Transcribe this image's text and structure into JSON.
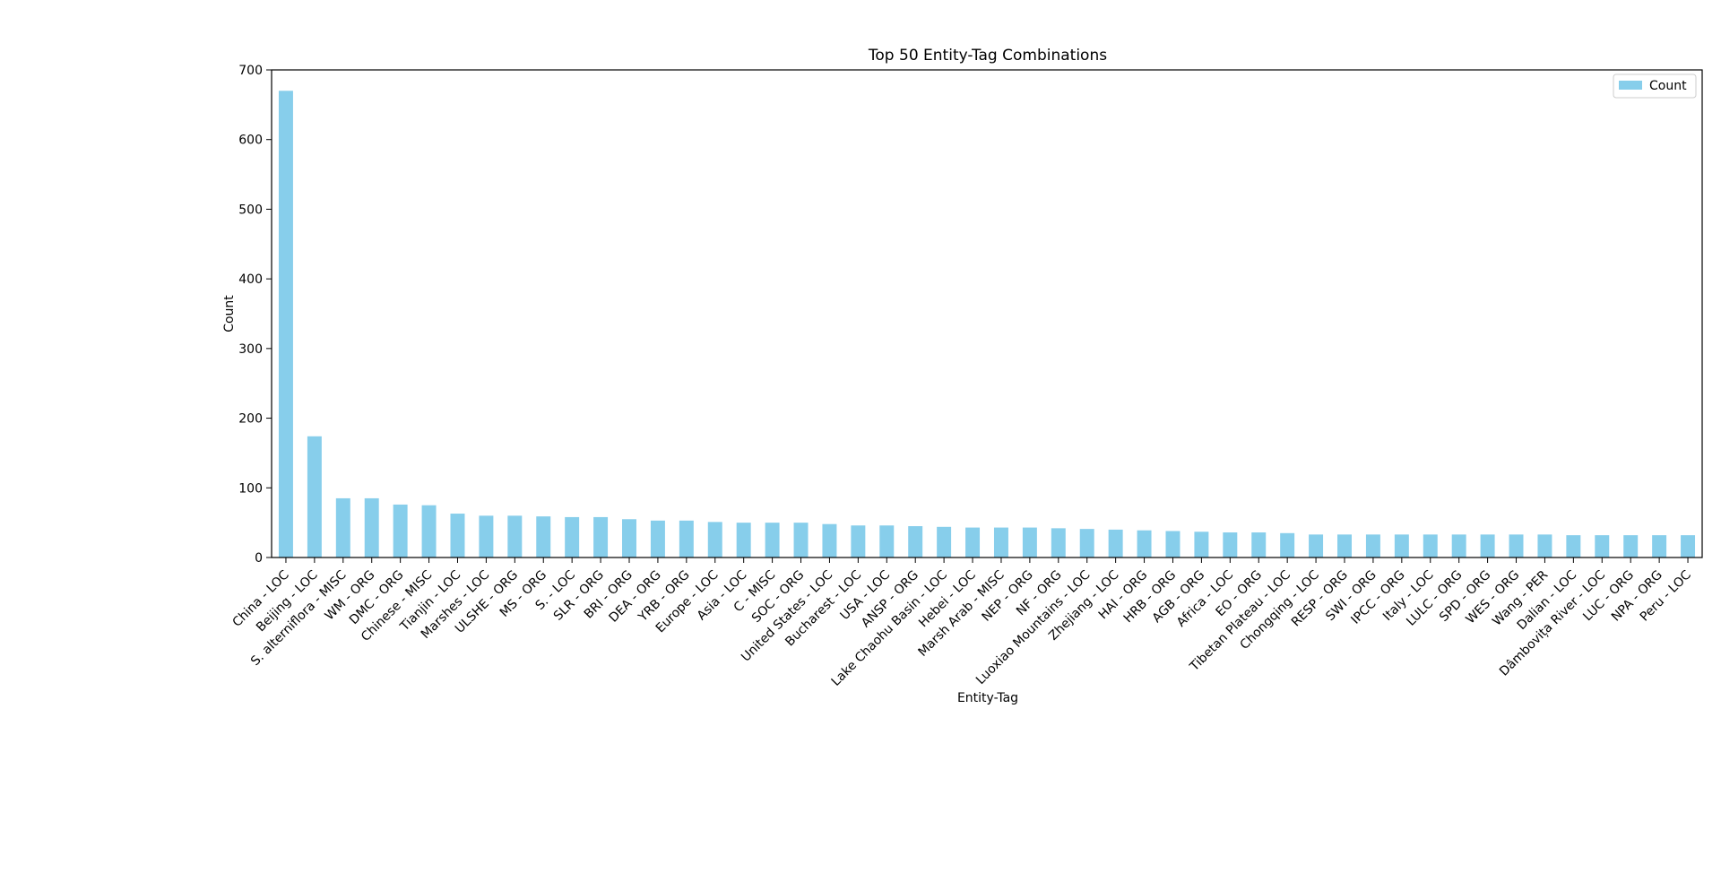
{
  "chart_data": {
    "type": "bar",
    "title": "Top 50 Entity-Tag Combinations",
    "xlabel": "Entity-Tag",
    "ylabel": "Count",
    "ylim": [
      0,
      700
    ],
    "yticks": [
      0,
      100,
      200,
      300,
      400,
      500,
      600,
      700
    ],
    "grid": false,
    "legend_position": "top-right",
    "bar_color": "#87ceeb",
    "categories": [
      "China - LOC",
      "Beijing - LOC",
      "S. alterniflora - MISC",
      "WM - ORG",
      "DMC - ORG",
      "Chinese - MISC",
      "Tianjin - LOC",
      "Marshes - LOC",
      "ULSHE - ORG",
      "MS - ORG",
      "S. - LOC",
      "SLR - ORG",
      "BRI - ORG",
      "DEA - ORG",
      "YRB - ORG",
      "Europe - LOC",
      "Asia - LOC",
      "C - MISC",
      "SOC - ORG",
      "United States - LOC",
      "Bucharest - LOC",
      "USA - LOC",
      "ANSP - ORG",
      "Lake Chaohu Basin - LOC",
      "Hebei - LOC",
      "Marsh Arab - MISC",
      "NEP - ORG",
      "NF - ORG",
      "Luoxiao Mountains - LOC",
      "Zhejiang - LOC",
      "HAI - ORG",
      "HRB - ORG",
      "AGB - ORG",
      "Africa - LOC",
      "EO - ORG",
      "Tibetan Plateau - LOC",
      "Chongqing - LOC",
      "RESP - ORG",
      "SWI - ORG",
      "IPCC - ORG",
      "Italy - LOC",
      "LULC - ORG",
      "SPD - ORG",
      "WES - ORG",
      "Wang - PER",
      "Dalian - LOC",
      "Dâmbovița River - LOC",
      "LUC - ORG",
      "NPA - ORG",
      "Peru - LOC"
    ],
    "series": [
      {
        "name": "Count",
        "values": [
          670,
          174,
          85,
          85,
          76,
          75,
          63,
          60,
          60,
          59,
          58,
          58,
          55,
          53,
          53,
          51,
          50,
          50,
          50,
          48,
          46,
          46,
          45,
          44,
          43,
          43,
          43,
          42,
          41,
          40,
          39,
          38,
          37,
          36,
          36,
          35,
          33,
          33,
          33,
          33,
          33,
          33,
          33,
          33,
          33,
          32,
          32,
          32,
          32,
          32
        ]
      }
    ]
  }
}
